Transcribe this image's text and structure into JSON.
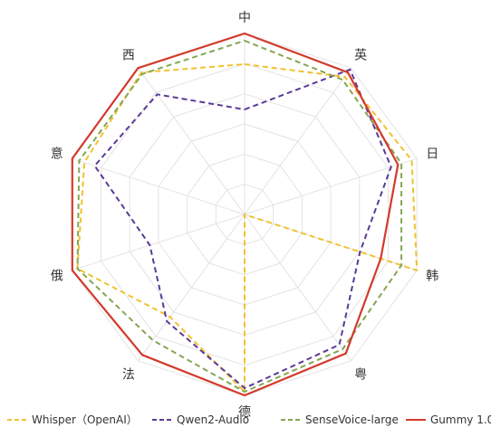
{
  "chart_data": {
    "type": "radar",
    "axes": [
      "中",
      "英",
      "日",
      "韩",
      "粤",
      "德",
      "法",
      "俄",
      "意",
      "西"
    ],
    "range": [
      0,
      1
    ],
    "rings": 6,
    "grid": true,
    "legend_position": "bottom",
    "series": [
      {
        "name": "Whisper（OpenAI）",
        "color": "#F2C12E",
        "style": "dashed",
        "values": [
          0.83,
          0.94,
          0.97,
          1.0,
          0.0,
          0.98,
          0.7,
          0.97,
          0.93,
          0.97
        ]
      },
      {
        "name": "Qwen2-Audio",
        "color": "#5B3A96",
        "style": "dashed",
        "values": [
          0.58,
          0.99,
          0.85,
          0.67,
          0.89,
          0.96,
          0.73,
          0.55,
          0.87,
          0.82
        ]
      },
      {
        "name": "SenseVoice-large",
        "color": "#84A652",
        "style": "dashed",
        "values": [
          0.96,
          0.92,
          0.91,
          0.91,
          0.92,
          0.98,
          0.86,
          0.97,
          0.96,
          0.96
        ]
      },
      {
        "name": "Gummy 1.0",
        "color": "#D33A2C",
        "style": "solid",
        "values": [
          1.0,
          0.97,
          0.89,
          0.79,
          0.95,
          1.0,
          0.96,
          1.0,
          1.0,
          1.0
        ]
      }
    ]
  }
}
